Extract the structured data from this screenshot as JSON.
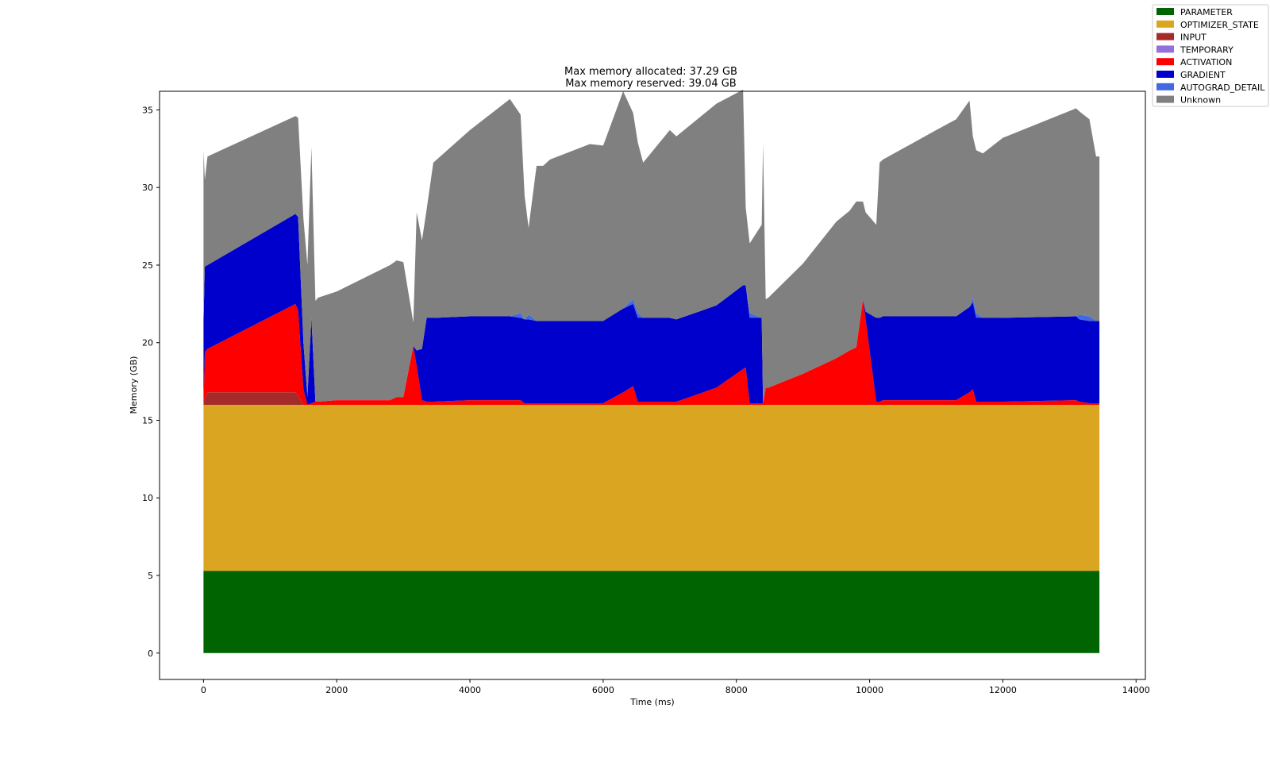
{
  "chart_data": {
    "type": "area",
    "stacked": true,
    "title": [
      "Max memory allocated: 37.29 GB",
      "Max memory reserved: 39.04 GB"
    ],
    "xlabel": "Time (ms)",
    "ylabel": "Memory (GB)",
    "xlim": [
      -660,
      14140
    ],
    "ylim": [
      -1.7,
      36.2
    ],
    "xticks": [
      0,
      2000,
      4000,
      6000,
      8000,
      10000,
      12000,
      14000
    ],
    "yticks": [
      0,
      5,
      10,
      15,
      20,
      25,
      30,
      35
    ],
    "grid": false,
    "legend_position": "outside-top-right",
    "x": [
      0,
      20,
      60,
      1380,
      1420,
      1500,
      1560,
      1620,
      1680,
      1720,
      2000,
      2800,
      2900,
      3000,
      3150,
      3200,
      3280,
      3350,
      3450,
      4000,
      4600,
      4760,
      4820,
      4880,
      5000,
      5100,
      5200,
      5800,
      6000,
      6300,
      6450,
      6520,
      6600,
      7000,
      7100,
      7700,
      8100,
      8140,
      8200,
      8380,
      8400,
      8440,
      8480,
      9000,
      9500,
      9700,
      9800,
      9900,
      9940,
      10100,
      10150,
      10200,
      11000,
      11300,
      11500,
      11550,
      11600,
      11700,
      12000,
      13100,
      13150,
      13300,
      13400,
      13450
    ],
    "series": [
      {
        "name": "PARAMETER",
        "color": "#006400",
        "values": [
          5.3,
          5.3,
          5.3,
          5.3,
          5.3,
          5.3,
          5.3,
          5.3,
          5.3,
          5.3,
          5.3,
          5.3,
          5.3,
          5.3,
          5.3,
          5.3,
          5.3,
          5.3,
          5.3,
          5.3,
          5.3,
          5.3,
          5.3,
          5.3,
          5.3,
          5.3,
          5.3,
          5.3,
          5.3,
          5.3,
          5.3,
          5.3,
          5.3,
          5.3,
          5.3,
          5.3,
          5.3,
          5.3,
          5.3,
          5.3,
          5.3,
          5.3,
          5.3,
          5.3,
          5.3,
          5.3,
          5.3,
          5.3,
          5.3,
          5.3,
          5.3,
          5.3,
          5.3,
          5.3,
          5.3,
          5.3,
          5.3,
          5.3,
          5.3,
          5.3,
          5.3,
          5.3,
          5.3,
          5.3
        ]
      },
      {
        "name": "OPTIMIZER_STATE",
        "color": "#DAA520",
        "values": [
          10.7,
          10.7,
          10.7,
          10.7,
          10.7,
          10.7,
          10.7,
          10.7,
          10.7,
          10.7,
          10.7,
          10.7,
          10.7,
          10.7,
          10.7,
          10.7,
          10.7,
          10.7,
          10.7,
          10.7,
          10.7,
          10.7,
          10.7,
          10.7,
          10.7,
          10.7,
          10.7,
          10.7,
          10.7,
          10.7,
          10.7,
          10.7,
          10.7,
          10.7,
          10.7,
          10.7,
          10.7,
          10.7,
          10.7,
          10.7,
          10.7,
          10.7,
          10.7,
          10.7,
          10.7,
          10.7,
          10.7,
          10.7,
          10.7,
          10.7,
          10.7,
          10.7,
          10.7,
          10.7,
          10.7,
          10.7,
          10.7,
          10.7,
          10.7,
          10.7,
          10.7,
          10.7,
          10.7,
          10.7
        ]
      },
      {
        "name": "INPUT",
        "color": "#A52A2A",
        "values": [
          0.0,
          0.4,
          0.8,
          0.8,
          0.6,
          0.0,
          0.0,
          0.0,
          0.0,
          0.0,
          0.0,
          0.0,
          0.0,
          0.0,
          0.0,
          0.0,
          0.0,
          0.0,
          0.0,
          0.0,
          0.0,
          0.0,
          0.0,
          0.0,
          0.0,
          0.0,
          0.0,
          0.0,
          0.0,
          0.0,
          0.0,
          0.0,
          0.0,
          0.0,
          0.0,
          0.0,
          0.0,
          0.0,
          0.0,
          0.0,
          0.0,
          0.0,
          0.0,
          0.0,
          0.0,
          0.0,
          0.0,
          0.0,
          0.0,
          0.0,
          0.0,
          0.0,
          0.0,
          0.0,
          0.0,
          0.0,
          0.0,
          0.0,
          0.0,
          0.0,
          0.0,
          0.0,
          0.0,
          0.0
        ]
      },
      {
        "name": "TEMPORARY",
        "color": "#9370DB",
        "values": [
          0.0,
          0.0,
          0.0,
          0.0,
          0.0,
          0.0,
          0.0,
          0.0,
          0.0,
          0.0,
          0.0,
          0.0,
          0.0,
          0.0,
          0.0,
          0.0,
          0.0,
          0.0,
          0.0,
          0.0,
          0.0,
          0.0,
          0.0,
          0.0,
          0.0,
          0.0,
          0.0,
          0.0,
          0.0,
          0.0,
          0.0,
          0.0,
          0.0,
          0.0,
          0.0,
          0.0,
          0.0,
          0.0,
          0.0,
          0.0,
          0.0,
          0.0,
          0.0,
          0.0,
          0.0,
          0.0,
          0.0,
          0.0,
          0.0,
          0.0,
          0.0,
          0.0,
          0.0,
          0.0,
          0.0,
          0.0,
          0.0,
          0.0,
          0.0,
          0.0,
          0.0,
          0.0,
          0.0,
          0.0
        ]
      },
      {
        "name": "ACTIVATION",
        "color": "#FF0000",
        "values": [
          0.0,
          3.0,
          2.8,
          5.7,
          5.5,
          1.0,
          0.0,
          0.1,
          0.2,
          0.2,
          0.3,
          0.3,
          0.5,
          0.5,
          3.8,
          2.5,
          0.3,
          0.2,
          0.2,
          0.3,
          0.3,
          0.3,
          0.1,
          0.1,
          0.1,
          0.1,
          0.1,
          0.1,
          0.1,
          0.8,
          1.2,
          0.2,
          0.2,
          0.2,
          0.2,
          1.1,
          2.3,
          2.4,
          0.1,
          0.1,
          0.1,
          1.1,
          1.1,
          2.0,
          3.0,
          3.5,
          3.7,
          6.8,
          5.5,
          0.2,
          0.2,
          0.3,
          0.3,
          0.3,
          0.8,
          1.0,
          0.2,
          0.2,
          0.2,
          0.3,
          0.2,
          0.1,
          0.1,
          0.1
        ]
      },
      {
        "name": "GRADIENT",
        "color": "#0000CD",
        "values": [
          5.4,
          5.5,
          5.4,
          5.8,
          6.0,
          3.0,
          0.5,
          5.5,
          0.0,
          0.0,
          0.0,
          0.0,
          0.0,
          0.0,
          0.0,
          1.0,
          3.3,
          5.4,
          5.4,
          5.4,
          5.4,
          5.3,
          5.4,
          5.4,
          5.3,
          5.3,
          5.3,
          5.3,
          5.3,
          5.4,
          5.3,
          5.4,
          5.4,
          5.4,
          5.3,
          5.3,
          5.4,
          5.3,
          5.5,
          5.5,
          0.0,
          0.0,
          0.0,
          0.0,
          0.0,
          0.0,
          0.0,
          0.0,
          0.5,
          5.4,
          5.4,
          5.4,
          5.4,
          5.4,
          5.5,
          5.6,
          5.4,
          5.4,
          5.4,
          5.4,
          5.3,
          5.3,
          5.3,
          5.3
        ]
      },
      {
        "name": "AUTOGRAD_DETAIL",
        "color": "#4169E1",
        "values": [
          0.0,
          0.0,
          0.0,
          0.0,
          0.0,
          0.0,
          0.0,
          0.0,
          0.0,
          0.0,
          0.0,
          0.0,
          0.0,
          0.0,
          0.0,
          0.0,
          0.0,
          0.0,
          0.0,
          0.0,
          0.0,
          0.3,
          0.0,
          0.3,
          0.0,
          0.0,
          0.0,
          0.0,
          0.0,
          0.0,
          0.3,
          0.3,
          0.0,
          0.0,
          0.0,
          0.0,
          0.0,
          0.0,
          0.3,
          0.0,
          0.0,
          0.0,
          0.0,
          0.0,
          0.0,
          0.0,
          0.0,
          0.0,
          0.0,
          0.0,
          0.0,
          0.0,
          0.0,
          0.0,
          0.0,
          0.3,
          0.3,
          0.0,
          0.0,
          0.0,
          0.3,
          0.3,
          0.0,
          0.0
        ]
      },
      {
        "name": "Unknown",
        "color": "#808080",
        "values": [
          11.0,
          5.6,
          7.0,
          6.3,
          6.4,
          8.0,
          8.5,
          11.0,
          6.5,
          6.7,
          7.0,
          8.7,
          8.8,
          8.7,
          1.5,
          8.9,
          7.0,
          7.0,
          10.0,
          12.0,
          14.0,
          12.8,
          8.0,
          5.6,
          10.0,
          10.0,
          10.4,
          11.4,
          11.3,
          14.0,
          12.0,
          11.0,
          10.0,
          12.1,
          11.8,
          13.0,
          12.6,
          5.0,
          4.5,
          6.0,
          16.7,
          5.7,
          5.8,
          7.1,
          8.8,
          9.0,
          9.4,
          6.3,
          6.4,
          6.0,
          10.0,
          10.1,
          12.0,
          12.7,
          13.3,
          10.4,
          10.5,
          10.6,
          11.6,
          13.4,
          13.1,
          12.7,
          10.6,
          10.6
        ]
      }
    ]
  }
}
